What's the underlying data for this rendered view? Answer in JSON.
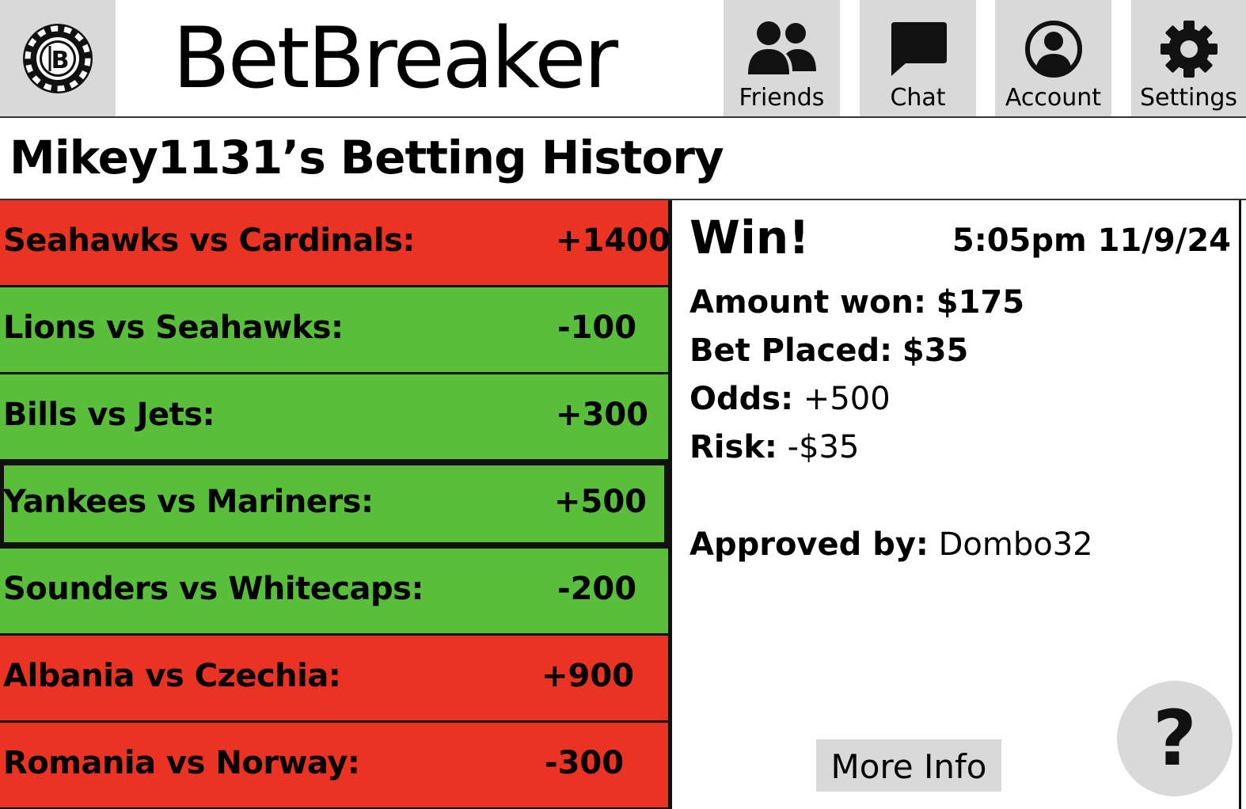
{
  "app": {
    "name": "BetBreaker",
    "logo_letter": "B",
    "logo_icon": "poker-chip-icon"
  },
  "nav": {
    "items": [
      {
        "label": "Friends",
        "icon": "friends-icon"
      },
      {
        "label": "Chat",
        "icon": "chat-bubble-icon"
      },
      {
        "label": "Account",
        "icon": "account-icon"
      },
      {
        "label": "Settings",
        "icon": "gear-icon"
      }
    ]
  },
  "page": {
    "title": "Mikey1131’s Betting History"
  },
  "colors": {
    "win": "#59bf3a",
    "lose": "#ea3323",
    "button_gray": "#d9d9d9"
  },
  "bets": [
    {
      "match": "Seahawks vs Cardinals:",
      "odds": "+1400",
      "result": "lose"
    },
    {
      "match": "Lions vs Seahawks:",
      "odds": "-100",
      "result": "win"
    },
    {
      "match": "Bills vs Jets:",
      "odds": "+300",
      "result": "win"
    },
    {
      "match": "Yankees vs Mariners:",
      "odds": "+500",
      "result": "win",
      "selected": true
    },
    {
      "match": "Sounders vs Whitecaps:",
      "odds": "-200",
      "result": "win"
    },
    {
      "match": "Albania vs Czechia:",
      "odds": "+900",
      "result": "lose"
    },
    {
      "match": "Romania vs Norway:",
      "odds": "-300",
      "result": "lose"
    }
  ],
  "detail": {
    "status": "Win!",
    "timestamp": "5:05pm 11/9/24",
    "amount_won_label": "Amount won:",
    "amount_won_value": "$175",
    "bet_placed_label": "Bet Placed:",
    "bet_placed_value": "$35",
    "odds_label": "Odds:",
    "odds_value": "+500",
    "risk_label": "Risk:",
    "risk_value": "-$35",
    "approved_label": "Approved by:",
    "approved_value": "Dombo32",
    "more_info_label": "More Info",
    "help_label": "?"
  }
}
